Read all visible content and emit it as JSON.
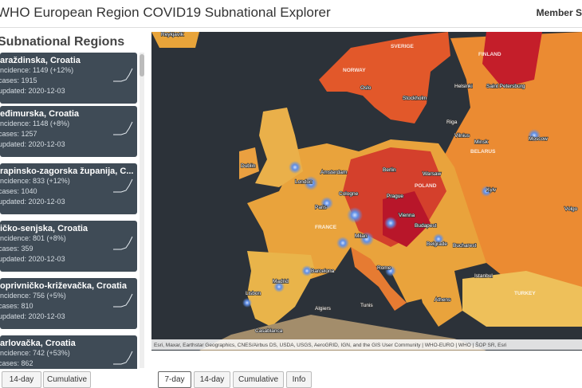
{
  "header": {
    "title": "WHO European Region COVID19 Subnational Explorer",
    "right": "Member S"
  },
  "panel": {
    "title": "Subnational Regions",
    "cards": [
      {
        "name": "araždinska, Croatia",
        "incidence": "incidence: 1149 (+12%)",
        "cases": "cases: 1915",
        "updated": "updated: 2020-12-03"
      },
      {
        "name": "eđimurska, Croatia",
        "incidence": "incidence: 1148 (+8%)",
        "cases": "cases: 1257",
        "updated": "updated: 2020-12-03"
      },
      {
        "name": "rapinsko-zagorska županija, C...",
        "incidence": "incidence: 833 (+12%)",
        "cases": "cases: 1040",
        "updated": "updated: 2020-12-03"
      },
      {
        "name": "ičko-senjska, Croatia",
        "incidence": "incidence: 801 (+8%)",
        "cases": "cases: 359",
        "updated": "updated: 2020-12-03"
      },
      {
        "name": "oprivničko-križevačka, Croatia",
        "incidence": "incidence: 756 (+5%)",
        "cases": "cases: 810",
        "updated": "updated: 2020-12-03"
      },
      {
        "name": "arlovačka, Croatia",
        "incidence": "incidence: 742 (+53%)",
        "cases": "cases: 862",
        "updated": ""
      }
    ],
    "tabs": [
      "14-day",
      "Cumulative"
    ]
  },
  "map": {
    "labels": [
      "Reykjavík",
      "SVERIGE",
      "FINLAND",
      "NORWAY",
      "Oslo",
      "Stockholm",
      "Helsinki",
      "Saint Petersburg",
      "Riga",
      "Moscow",
      "Minsk",
      "BELARUS",
      "Vilnius",
      "Dublin",
      "London",
      "Amsterdam",
      "Berlin",
      "Warsaw",
      "POLAND",
      "Paris",
      "FRANCE",
      "Cologne",
      "Prague",
      "Vienna",
      "Budapest",
      "Kyiv",
      "Milan",
      "Rome",
      "Belgrade",
      "Bucharest",
      "Madrid",
      "Barcelona",
      "Lisbon",
      "Algiers",
      "Tunis",
      "Casablanca",
      "TURKEY",
      "Athens",
      "Istanbul",
      "Volgo"
    ],
    "attribution": "Esri, Maxar, Earthstar Geographics, CNES/Airbus DS, USDA, USGS, AeroGRID, IGN, and the GIS User Community | WHO-EURO | WHO | ŠOP SR, Esri"
  },
  "tabs": [
    "7-day",
    "14-day",
    "Cumulative",
    "Info"
  ]
}
